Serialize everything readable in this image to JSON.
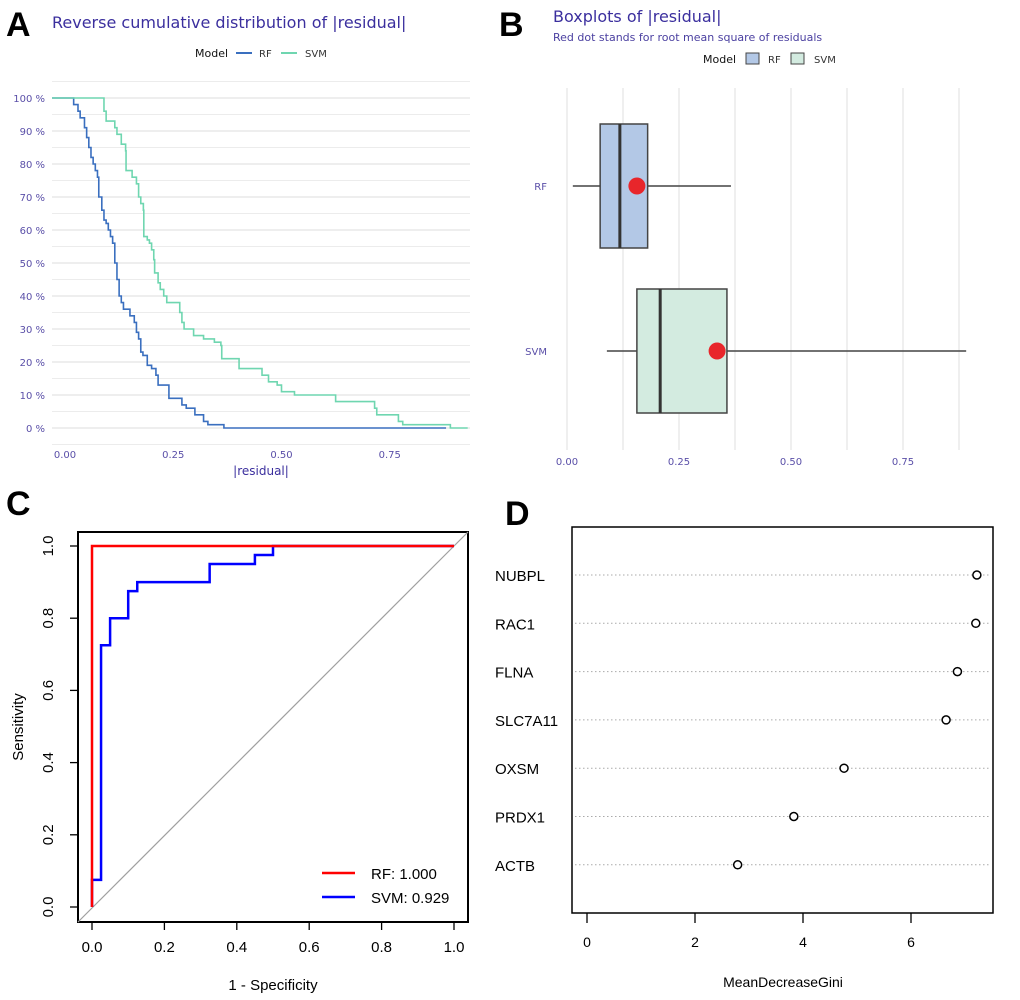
{
  "panel_labels": [
    "A",
    "B",
    "C",
    "D"
  ],
  "chart_data": [
    {
      "type": "line",
      "panel": "A",
      "title": "Reverse cumulative distribution of |residual|",
      "xlabel": "|residual|",
      "ylabel": "",
      "legend": {
        "title": "Model",
        "position": "top",
        "entries": [
          "RF",
          "SVM"
        ]
      },
      "xlim": [
        -0.03,
        0.93
      ],
      "ylim": [
        -5,
        105
      ],
      "x_ticks": [
        "0.00",
        "0.25",
        "0.50",
        "0.75"
      ],
      "y_ticks": [
        "0 %",
        "10 %",
        "20 %",
        "30 %",
        "40 %",
        "50 %",
        "60 %",
        "70 %",
        "80 %",
        "90 %",
        "100 %"
      ],
      "grid": true,
      "colors": {
        "RF": "#3a6fbf",
        "SVM": "#6fd6b0"
      },
      "series": [
        {
          "name": "RF",
          "step": true,
          "points": [
            [
              -0.03,
              100
            ],
            [
              0.012,
              100
            ],
            [
              0.02,
              98
            ],
            [
              0.03,
              96
            ],
            [
              0.035,
              94
            ],
            [
              0.045,
              91
            ],
            [
              0.05,
              88
            ],
            [
              0.055,
              85
            ],
            [
              0.06,
              82
            ],
            [
              0.065,
              80
            ],
            [
              0.07,
              78
            ],
            [
              0.075,
              76
            ],
            [
              0.078,
              70
            ],
            [
              0.085,
              66
            ],
            [
              0.09,
              63
            ],
            [
              0.095,
              62
            ],
            [
              0.1,
              60
            ],
            [
              0.105,
              58
            ],
            [
              0.11,
              56
            ],
            [
              0.115,
              50
            ],
            [
              0.12,
              45
            ],
            [
              0.125,
              40
            ],
            [
              0.13,
              38
            ],
            [
              0.135,
              36
            ],
            [
              0.15,
              34
            ],
            [
              0.16,
              32
            ],
            [
              0.165,
              29
            ],
            [
              0.17,
              27
            ],
            [
              0.175,
              23
            ],
            [
              0.18,
              22
            ],
            [
              0.19,
              19
            ],
            [
              0.2,
              18
            ],
            [
              0.21,
              16
            ],
            [
              0.215,
              13
            ],
            [
              0.24,
              9
            ],
            [
              0.27,
              7
            ],
            [
              0.28,
              6
            ],
            [
              0.3,
              4
            ],
            [
              0.32,
              2
            ],
            [
              0.33,
              1
            ],
            [
              0.367,
              0
            ],
            [
              0.88,
              0
            ]
          ]
        },
        {
          "name": "SVM",
          "step": true,
          "points": [
            [
              -0.03,
              100
            ],
            [
              0.088,
              100
            ],
            [
              0.09,
              96
            ],
            [
              0.095,
              93
            ],
            [
              0.115,
              91
            ],
            [
              0.12,
              89
            ],
            [
              0.13,
              86
            ],
            [
              0.14,
              84
            ],
            [
              0.141,
              78
            ],
            [
              0.155,
              76
            ],
            [
              0.165,
              74
            ],
            [
              0.17,
              70
            ],
            [
              0.175,
              68
            ],
            [
              0.181,
              66
            ],
            [
              0.182,
              58
            ],
            [
              0.19,
              57
            ],
            [
              0.195,
              56
            ],
            [
              0.2,
              54
            ],
            [
              0.205,
              51
            ],
            [
              0.207,
              47
            ],
            [
              0.215,
              44
            ],
            [
              0.22,
              42
            ],
            [
              0.228,
              40
            ],
            [
              0.235,
              38
            ],
            [
              0.265,
              35
            ],
            [
              0.27,
              32
            ],
            [
              0.275,
              30
            ],
            [
              0.297,
              28
            ],
            [
              0.32,
              27
            ],
            [
              0.345,
              26
            ],
            [
              0.36,
              25
            ],
            [
              0.362,
              21
            ],
            [
              0.402,
              18
            ],
            [
              0.455,
              16
            ],
            [
              0.47,
              14
            ],
            [
              0.49,
              13
            ],
            [
              0.5,
              11
            ],
            [
              0.53,
              10
            ],
            [
              0.625,
              8
            ],
            [
              0.715,
              6
            ],
            [
              0.72,
              4
            ],
            [
              0.77,
              2
            ],
            [
              0.78,
              1
            ],
            [
              0.89,
              0
            ],
            [
              0.93,
              0
            ]
          ]
        }
      ]
    },
    {
      "type": "boxplot",
      "panel": "B",
      "title": "Boxplots of |residual|",
      "subtitle": "Red dot stands for root mean square of residuals",
      "legend": {
        "title": "Model",
        "position": "top",
        "entries": [
          "RF",
          "SVM"
        ]
      },
      "xlim": [
        0,
        0.9
      ],
      "x_ticks": [
        "0.00",
        "0.25",
        "0.50",
        "0.75"
      ],
      "categories": [
        "RF",
        "SVM"
      ],
      "grid": true,
      "colors": {
        "RF": "#b3c8e6",
        "SVM": "#d3ebe0",
        "rmse_dot": "#e8262b"
      },
      "boxes": [
        {
          "name": "RF",
          "whisker_low": 0.013,
          "q1": 0.074,
          "median": 0.118,
          "q3": 0.18,
          "whisker_high": 0.366,
          "rmse": 0.156
        },
        {
          "name": "SVM",
          "whisker_low": 0.089,
          "q1": 0.156,
          "median": 0.208,
          "q3": 0.357,
          "whisker_high": 0.891,
          "rmse": 0.335
        }
      ]
    },
    {
      "type": "line",
      "panel": "C",
      "xlabel": "1 - Specificity",
      "ylabel": "Sensitivity",
      "xlim": [
        0,
        1
      ],
      "ylim": [
        0,
        1
      ],
      "x_ticks": [
        "0.0",
        "0.2",
        "0.4",
        "0.6",
        "0.8",
        "1.0"
      ],
      "y_ticks": [
        "0.0",
        "0.2",
        "0.4",
        "0.6",
        "0.8",
        "1.0"
      ],
      "legend": {
        "position": "bottom-right",
        "entries": [
          "RF: 1.000",
          "SVM: 0.929"
        ]
      },
      "colors": {
        "RF": "#ff0000",
        "SVM": "#0000ff",
        "diagonal": "#a0a0a0"
      },
      "series": [
        {
          "name": "RF",
          "auc": 1.0,
          "points": [
            [
              0,
              0
            ],
            [
              0,
              1
            ],
            [
              1,
              1
            ]
          ]
        },
        {
          "name": "SVM",
          "auc": 0.929,
          "points": [
            [
              0,
              0
            ],
            [
              0,
              0.075
            ],
            [
              0.025,
              0.075
            ],
            [
              0.025,
              0.725
            ],
            [
              0.05,
              0.725
            ],
            [
              0.05,
              0.8
            ],
            [
              0.1,
              0.8
            ],
            [
              0.1,
              0.875
            ],
            [
              0.125,
              0.875
            ],
            [
              0.125,
              0.9
            ],
            [
              0.325,
              0.9
            ],
            [
              0.325,
              0.95
            ],
            [
              0.45,
              0.95
            ],
            [
              0.45,
              0.975
            ],
            [
              0.5,
              0.975
            ],
            [
              0.5,
              1
            ],
            [
              1,
              1
            ]
          ]
        }
      ]
    },
    {
      "type": "scatter",
      "panel": "D",
      "xlabel": "MeanDecreaseGini",
      "x_ticks": [
        "0",
        "2",
        "4",
        "6"
      ],
      "categories": [
        "NUBPL",
        "RAC1",
        "FLNA",
        "SLC7A11",
        "OXSM",
        "PRDX1",
        "ACTB"
      ],
      "values": [
        7.22,
        7.2,
        6.86,
        6.65,
        4.76,
        3.83,
        2.79
      ]
    }
  ]
}
